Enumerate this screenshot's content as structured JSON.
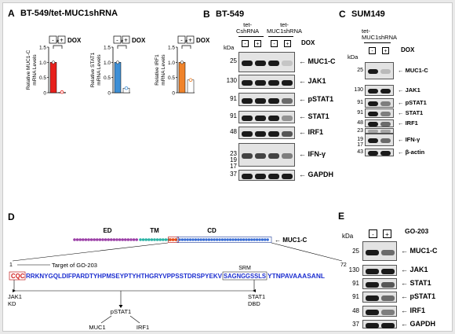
{
  "panelA": {
    "letter": "A",
    "title": "BT-549/tet-MUC1shRNA",
    "dox_label": "DOX",
    "minus": "-",
    "plus": "+",
    "star": "*",
    "ylabels": [
      "Relative MUC1-C\nmRNA Levels",
      "Relative STAT1\nmRNA Levels",
      "Relative IRF1\nmRNA Levels"
    ],
    "chart_data": [
      {
        "type": "bar",
        "categories": [
          "-",
          "+"
        ],
        "values": [
          1.0,
          0.02
        ],
        "ylim": [
          0,
          1.5
        ],
        "yticks": [
          "0",
          "0.5",
          "1.0",
          "1.5"
        ],
        "ylabel": "Relative MUC1-C mRNA Levels",
        "color": "#e8201c"
      },
      {
        "type": "bar",
        "categories": [
          "-",
          "+"
        ],
        "values": [
          1.0,
          0.15
        ],
        "ylim": [
          0,
          1.5
        ],
        "yticks": [
          "0",
          "0.5",
          "1.0",
          "1.5"
        ],
        "ylabel": "Relative STAT1 mRNA Levels",
        "color": "#3d8fd6"
      },
      {
        "type": "bar",
        "categories": [
          "-",
          "+"
        ],
        "values": [
          1.0,
          0.42
        ],
        "ylim": [
          0,
          1.5
        ],
        "yticks": [
          "0",
          "0.5",
          "1.0",
          "1.5"
        ],
        "ylabel": "Relative IRF1 mRNA Levels",
        "color": "#f0832a"
      }
    ]
  },
  "panelB": {
    "letter": "B",
    "title": "BT-549",
    "group1": "tet-\nCshRNA",
    "group2": "tet-\nMUC1shRNA",
    "kda": "kDa",
    "dox": "DOX",
    "signs": [
      "-",
      "+",
      "-",
      "+"
    ],
    "rows": [
      {
        "kda": "25",
        "label": "MUC1-C"
      },
      {
        "kda": "130",
        "label": "JAK1"
      },
      {
        "kda": "91",
        "label": "pSTAT1"
      },
      {
        "kda": "91",
        "label": "STAT1"
      },
      {
        "kda": "48",
        "label": "IRF1"
      },
      {
        "kda": "23\n19\n17",
        "label": "IFN-γ"
      },
      {
        "kda": "37",
        "label": "GAPDH"
      }
    ]
  },
  "panelC": {
    "letter": "C",
    "title": "SUM149",
    "group": "tet-\nMUC1shRNA",
    "kda": "kDa",
    "dox": "DOX",
    "signs": [
      "-",
      "+"
    ],
    "rows": [
      {
        "kda": "25",
        "label": "MUC1-C"
      },
      {
        "kda": "130",
        "label": "JAK1"
      },
      {
        "kda": "91",
        "label": "pSTAT1"
      },
      {
        "kda": "91",
        "label": "STAT1"
      },
      {
        "kda": "48",
        "label": "IRF1"
      },
      {
        "kda": "23",
        "label": ""
      },
      {
        "kda": "19\n17",
        "label": "IFN-γ"
      },
      {
        "kda": "43",
        "label": "β-actin"
      }
    ]
  },
  "panelD": {
    "letter": "D",
    "ed": "ED",
    "tm": "TM",
    "cd": "CD",
    "protein": "MUC1-C",
    "pos_start": "1",
    "pos_end": "72",
    "target": "Target of GO-203",
    "seq_cqc": "CQC",
    "seq_a": "RRKNYGQLDIFPARDTYHPMSEYPTYHTHGRYVPPSSTDRSPYEKV",
    "seq_srm": "SAGNGGSSLS",
    "seq_b": "YTNPAVAAASANL",
    "srm": "SRM",
    "jak1": "JAK1\nKD",
    "stat1": "STAT1\nDBD",
    "pstat1": "pSTAT1",
    "muc1": "MUC1",
    "irf1": "IRF1",
    "colors": {
      "ed": "#9b3fa6",
      "tm": "#2bb3a5",
      "cqc": "#e8501c",
      "cd": "#3b6fd6",
      "seq": "#1d2fd0",
      "cqc_text": "#d01818"
    }
  },
  "panelE": {
    "letter": "E",
    "kda": "kDa",
    "treatment": "GO-203",
    "signs": [
      "-",
      "+"
    ],
    "rows": [
      {
        "kda": "25",
        "label": "MUC1-C"
      },
      {
        "kda": "130",
        "label": "JAK1"
      },
      {
        "kda": "91",
        "label": "STAT1"
      },
      {
        "kda": "91",
        "label": "pSTAT1"
      },
      {
        "kda": "48",
        "label": "IRF1"
      },
      {
        "kda": "37",
        "label": "GAPDH"
      }
    ]
  }
}
